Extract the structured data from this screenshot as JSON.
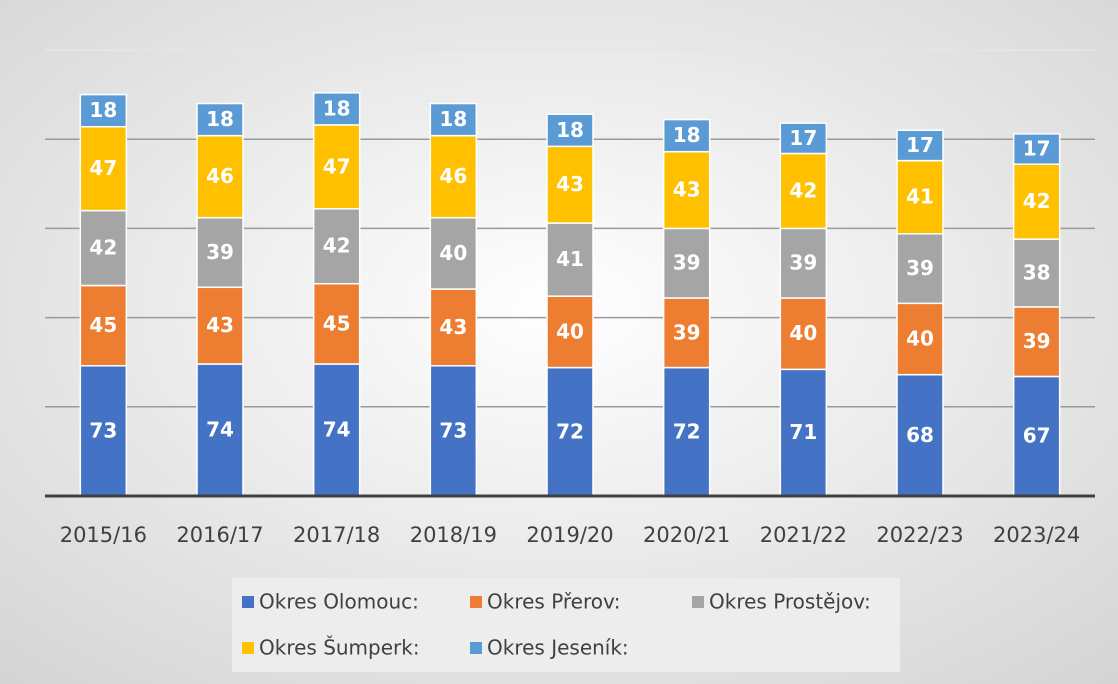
{
  "chart_data": {
    "type": "stacked_bar",
    "categories": [
      "2015/16",
      "2016/17",
      "2017/18",
      "2018/19",
      "2019/20",
      "2020/21",
      "2021/22",
      "2022/23",
      "2023/24"
    ],
    "series": [
      {
        "name": "Okres Olomouc:",
        "color": "#4472c4",
        "values": [
          73,
          74,
          74,
          73,
          72,
          72,
          71,
          68,
          67
        ]
      },
      {
        "name": "Okres Přerov:",
        "color": "#ed7d31",
        "values": [
          45,
          43,
          45,
          43,
          40,
          39,
          40,
          40,
          39
        ]
      },
      {
        "name": "Okres Prostějov:",
        "color": "#a5a5a5",
        "values": [
          42,
          39,
          42,
          40,
          41,
          39,
          39,
          39,
          38
        ]
      },
      {
        "name": "Okres Šumperk:",
        "color": "#ffc000",
        "values": [
          47,
          46,
          47,
          46,
          43,
          43,
          42,
          41,
          42
        ]
      },
      {
        "name": "Okres Jeseník:",
        "color": "#5b9bd5",
        "values": [
          18,
          18,
          18,
          18,
          18,
          18,
          17,
          17,
          17
        ]
      }
    ],
    "ylim": [
      0,
      250
    ],
    "yticks": [
      0,
      50,
      100,
      150,
      200,
      250
    ],
    "grid": true
  }
}
